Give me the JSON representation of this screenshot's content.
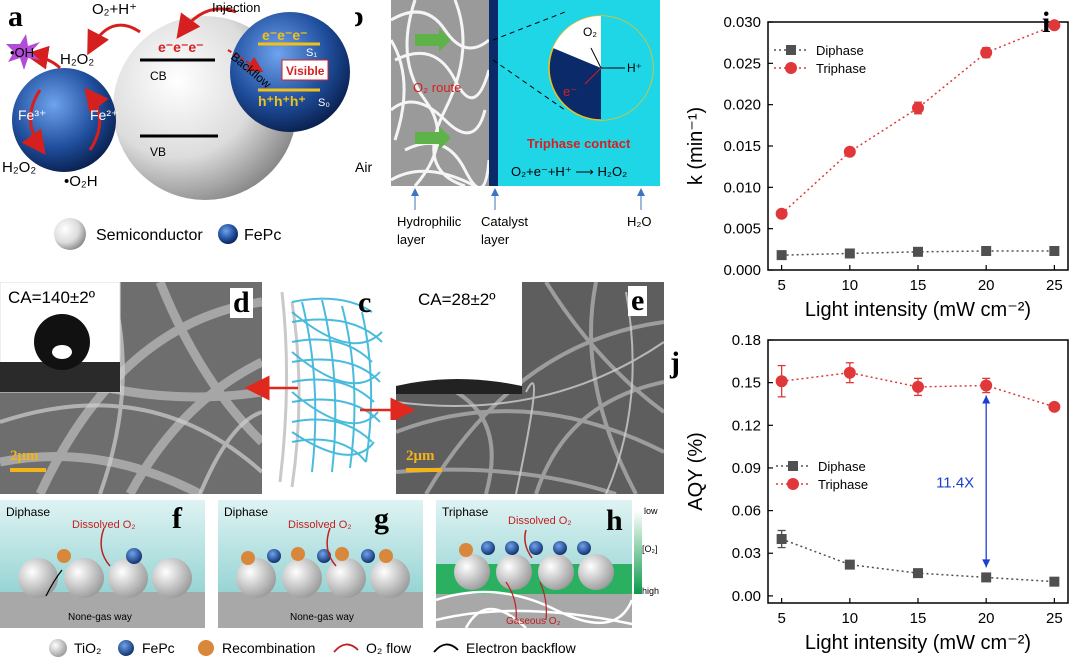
{
  "panel_labels": {
    "a": "a",
    "b": "b",
    "c": "c",
    "d": "d",
    "e": "e",
    "f": "f",
    "g": "g",
    "h": "h",
    "i": "i",
    "j": "j"
  },
  "panel_a": {
    "o2_h": "O₂+H⁺",
    "injection": "Injection",
    "oh": "•OH",
    "h2o2_top": "H₂O₂",
    "fe3": "Fe³⁺",
    "fe2": "Fe²⁺",
    "h2o2_bottom": "H₂O₂",
    "o2h": "•O₂H",
    "cb": "CB",
    "vb": "VB",
    "electrons": "e⁻e⁻e⁻",
    "backflow": "Backflow",
    "electrons_fepc": "e⁻e⁻e⁻",
    "s1": "S₁",
    "visible": "Visible",
    "holes": "h⁺h⁺h⁺",
    "s0": "S₀",
    "legend_semiconductor": "Semiconductor",
    "legend_fepc": "FePc",
    "colors": {
      "fepc": "#1f4e9c",
      "arrow": "#d62020",
      "oh": "#b24bd6"
    }
  },
  "panel_b": {
    "o2_route": "O₂ route",
    "air": "Air",
    "triphase": "Triphase contact",
    "o2": "O₂",
    "hplus": "H⁺",
    "eminus": "e⁻",
    "reaction": "O₂+e⁻+H⁺ ⟶ H₂O₂",
    "hydrophilic": "Hydrophilic layer",
    "hydrophilic_l1": "Hydrophilic",
    "hydrophilic_l2": "layer",
    "catalyst_l1": "Catalyst",
    "catalyst_l2": "layer",
    "h2o": "H₂O",
    "colors": {
      "water": "#1fd6e6",
      "catalyst": "#0a2a6a",
      "arrow": "#5fb24a"
    }
  },
  "panel_d": {
    "ca": "CA=140±2º",
    "scale": "2μm"
  },
  "panel_e": {
    "ca": "CA=28±2º",
    "scale": "2μm"
  },
  "panel_f": {
    "title": "Diphase",
    "dissolved": "Dissolved O₂",
    "bottom": "None-gas way"
  },
  "panel_g": {
    "title": "Diphase",
    "dissolved": "Dissolved O₂",
    "bottom": "None-gas way"
  },
  "panel_h": {
    "title": "Triphase",
    "dissolved": "Dissolved O₂",
    "gaseous": "Gaseous O₂",
    "low": "low",
    "high": "high",
    "o2": "[O₂]"
  },
  "bottom_legend": {
    "tio2": "TiO₂",
    "fepc": "FePc",
    "recombination": "Recombination",
    "o2flow": "O₂ flow",
    "backflow": "Electron backflow"
  },
  "chart_data": [
    {
      "type": "scatter",
      "panel": "i",
      "xlabel": "Light intensity (mW cm⁻²)",
      "ylabel": "k (min⁻¹)",
      "xlim": [
        4,
        26
      ],
      "ylim": [
        0,
        0.03
      ],
      "xticks": [
        5,
        10,
        15,
        20,
        25
      ],
      "yticks": [
        0.0,
        0.005,
        0.01,
        0.015,
        0.02,
        0.025,
        0.03
      ],
      "ytick_labels": [
        "0.000",
        "0.005",
        "0.010",
        "0.015",
        "0.020",
        "0.025",
        "0.030"
      ],
      "legend_position": "top-left",
      "series": [
        {
          "name": "Diphase",
          "marker": "square",
          "color": "#505050",
          "x": [
            5,
            10,
            15,
            20,
            25
          ],
          "y": [
            0.0018,
            0.002,
            0.0022,
            0.0023,
            0.0023
          ],
          "err": [
            0,
            0,
            0,
            0,
            0
          ]
        },
        {
          "name": "Triphase",
          "marker": "circle",
          "color": "#e0383a",
          "x": [
            5,
            10,
            15,
            20,
            25
          ],
          "y": [
            0.0068,
            0.0143,
            0.0196,
            0.0263,
            0.0296
          ],
          "err": [
            0,
            0.0004,
            0.0007,
            0.0006,
            0.0004
          ]
        }
      ]
    },
    {
      "type": "scatter",
      "panel": "j",
      "xlabel": "Light intensity (mW cm⁻²)",
      "ylabel": "AQY (%)",
      "xlim": [
        4,
        26
      ],
      "ylim": [
        -0.005,
        0.18
      ],
      "xticks": [
        5,
        10,
        15,
        20,
        25
      ],
      "yticks": [
        0.0,
        0.03,
        0.06,
        0.09,
        0.12,
        0.15,
        0.18
      ],
      "ytick_labels": [
        "0.00",
        "0.03",
        "0.06",
        "0.09",
        "0.12",
        "0.15",
        "0.18"
      ],
      "legend_position": "middle-left",
      "annotation": {
        "text": "11.4X",
        "x": 20,
        "y_top": 0.148,
        "y_bottom": 0.013,
        "color": "#1a3fd0"
      },
      "series": [
        {
          "name": "Diphase",
          "marker": "square",
          "color": "#505050",
          "x": [
            5,
            10,
            15,
            20,
            25
          ],
          "y": [
            0.04,
            0.022,
            0.016,
            0.013,
            0.01
          ],
          "err": [
            0.006,
            0,
            0,
            0,
            0
          ]
        },
        {
          "name": "Triphase",
          "marker": "circle",
          "color": "#e0383a",
          "x": [
            5,
            10,
            15,
            20,
            25
          ],
          "y": [
            0.151,
            0.157,
            0.147,
            0.148,
            0.133
          ],
          "err": [
            0.011,
            0.007,
            0.006,
            0.005,
            0
          ]
        }
      ]
    }
  ]
}
